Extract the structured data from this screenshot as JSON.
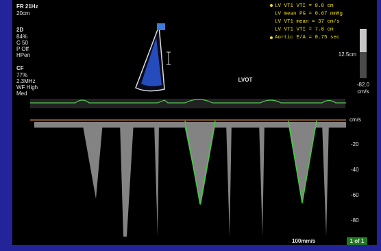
{
  "header": {
    "frame_rate": "FR 21Hz",
    "depth": "20cm"
  },
  "settings_2d": {
    "label": "2D",
    "lines": [
      "84%",
      "C 50",
      "P Off",
      "HPen"
    ]
  },
  "settings_cf": {
    "label": "CF",
    "lines": [
      "77%",
      "2.3MHz",
      "WF High",
      "Med"
    ]
  },
  "measurements": [
    "LV VT1 VTI = 8.8 cm",
    "LV mean PG = 0.67 mmHg",
    "LV VT1 mean = 37 cm/s",
    "LV VT1 VTI = 7.8 cm",
    "Aortic E/A = 0.75 sec"
  ],
  "color_scale": {
    "top_note": "12.5cm",
    "min": "-82.0",
    "unit": "cm/s"
  },
  "view_label": "LVOT",
  "doppler": {
    "unit": "cm/s",
    "ticks": [
      "-20",
      "-40",
      "-60",
      "-80"
    ],
    "sweep": "100mm/s",
    "page": "1 of 1"
  }
}
